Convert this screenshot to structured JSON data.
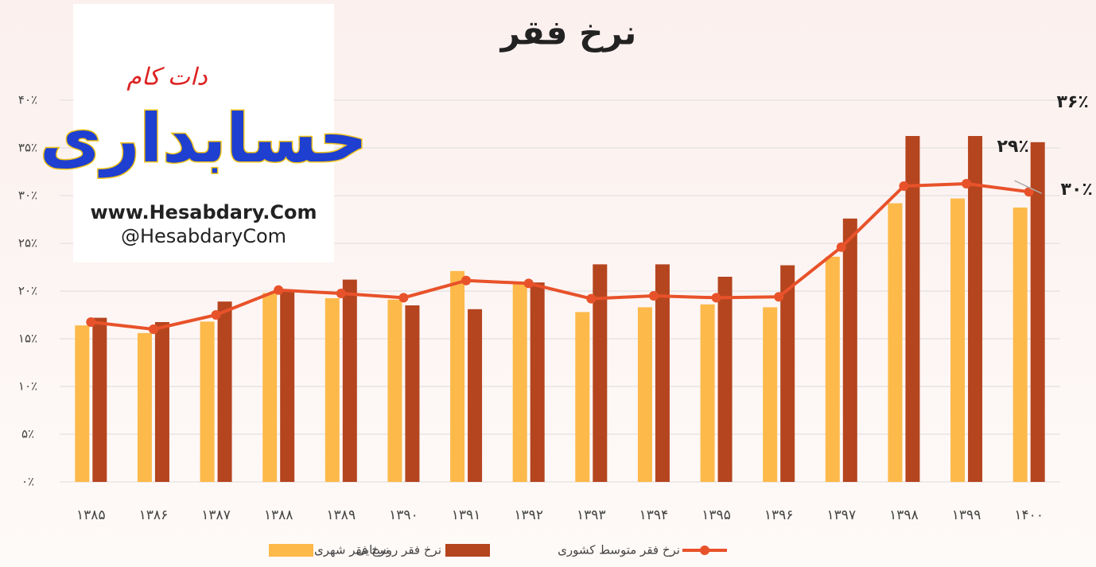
{
  "chart_data": {
    "type": "bar_line",
    "title": "نرخ فقر",
    "categories": [
      "۱۳۸۵",
      "۱۳۸۶",
      "۱۳۸۷",
      "۱۳۸۸",
      "۱۳۸۹",
      "۱۳۹۰",
      "۱۳۹۱",
      "۱۳۹۲",
      "۱۳۹۳",
      "۱۳۹۴",
      "۱۳۹۵",
      "۱۳۹۶",
      "۱۳۹۷",
      "۱۳۹۸",
      "۱۳۹۹",
      "۱۴۰۰"
    ],
    "series": [
      {
        "name": "نرخ فقر شهری",
        "type": "bar",
        "color": "#fdb94a",
        "values": [
          16.4,
          15.6,
          16.8,
          19.8,
          19.25,
          19.1,
          22.1,
          20.75,
          17.8,
          18.3,
          18.6,
          18.3,
          23.6,
          29.2,
          29.7,
          28.75
        ],
        "value_labels": [
          null,
          null,
          null,
          null,
          null,
          null,
          null,
          null,
          null,
          null,
          null,
          null,
          null,
          null,
          null,
          "۲۹٪"
        ]
      },
      {
        "name": "نرخ فقر روستایی",
        "type": "bar",
        "color": "#b5451f",
        "values": [
          17.2,
          16.75,
          18.9,
          20,
          21.2,
          18.5,
          18.1,
          20.9,
          22.8,
          22.8,
          21.5,
          22.7,
          27.6,
          36.25,
          36.25,
          35.6
        ],
        "value_labels": [
          null,
          null,
          null,
          null,
          null,
          null,
          null,
          null,
          null,
          null,
          null,
          null,
          null,
          null,
          null,
          "۳۶٪"
        ]
      },
      {
        "name": "نرخ فقر متوسط کشوری",
        "type": "line",
        "color": "#e8522a",
        "values": [
          16.75,
          16,
          17.5,
          20.1,
          19.75,
          19.3,
          21.1,
          20.8,
          19.2,
          19.5,
          19.3,
          19.4,
          24.6,
          31,
          31.25,
          30.4
        ],
        "value_labels": [
          null,
          null,
          null,
          null,
          null,
          null,
          null,
          null,
          null,
          null,
          null,
          null,
          null,
          null,
          null,
          "۳۰٪"
        ]
      }
    ],
    "ylim": [
      0,
      40
    ],
    "yticks": [
      {
        "value": 0,
        "label": "۰٪"
      },
      {
        "value": 5,
        "label": "۵٪"
      },
      {
        "value": 10,
        "label": "۱۰٪"
      },
      {
        "value": 15,
        "label": "۱۵٪"
      },
      {
        "value": 20,
        "label": "۲۰٪"
      },
      {
        "value": 25,
        "label": "۲۵٪"
      },
      {
        "value": 30,
        "label": "۳۰٪"
      },
      {
        "value": 35,
        "label": "۳۵٪"
      },
      {
        "value": 40,
        "label": "۴۰٪"
      }
    ],
    "grid": true,
    "legend": "bottom"
  },
  "logo": {
    "tagline": "دات کام",
    "name": "حسابداری",
    "site": "www.Hesabdary.Com",
    "handle": "@HesabdaryCom"
  }
}
